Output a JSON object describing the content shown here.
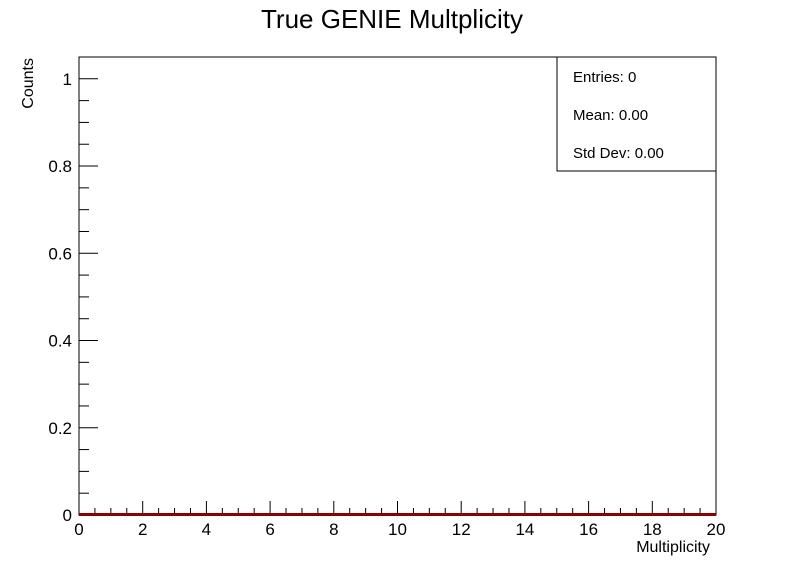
{
  "chart_data": {
    "type": "bar",
    "title": "True GENIE Multplicity",
    "xlabel": "Multiplicity",
    "ylabel": "Counts",
    "xlim": [
      0,
      20
    ],
    "ylim": [
      0,
      1.05
    ],
    "x_ticks": [
      0,
      2,
      4,
      6,
      8,
      10,
      12,
      14,
      16,
      18,
      20
    ],
    "y_ticks": [
      0,
      0.2,
      0.4,
      0.6,
      0.8,
      1
    ],
    "grid": false,
    "bins": 20,
    "values": [
      0,
      0,
      0,
      0,
      0,
      0,
      0,
      0,
      0,
      0,
      0,
      0,
      0,
      0,
      0,
      0,
      0,
      0,
      0,
      0
    ],
    "line_color": "#8b0000",
    "stats": {
      "placement": "top-right",
      "entries": "Entries: 0",
      "mean": "Mean: 0.00",
      "std_dev": "Std Dev: 0.00"
    }
  }
}
